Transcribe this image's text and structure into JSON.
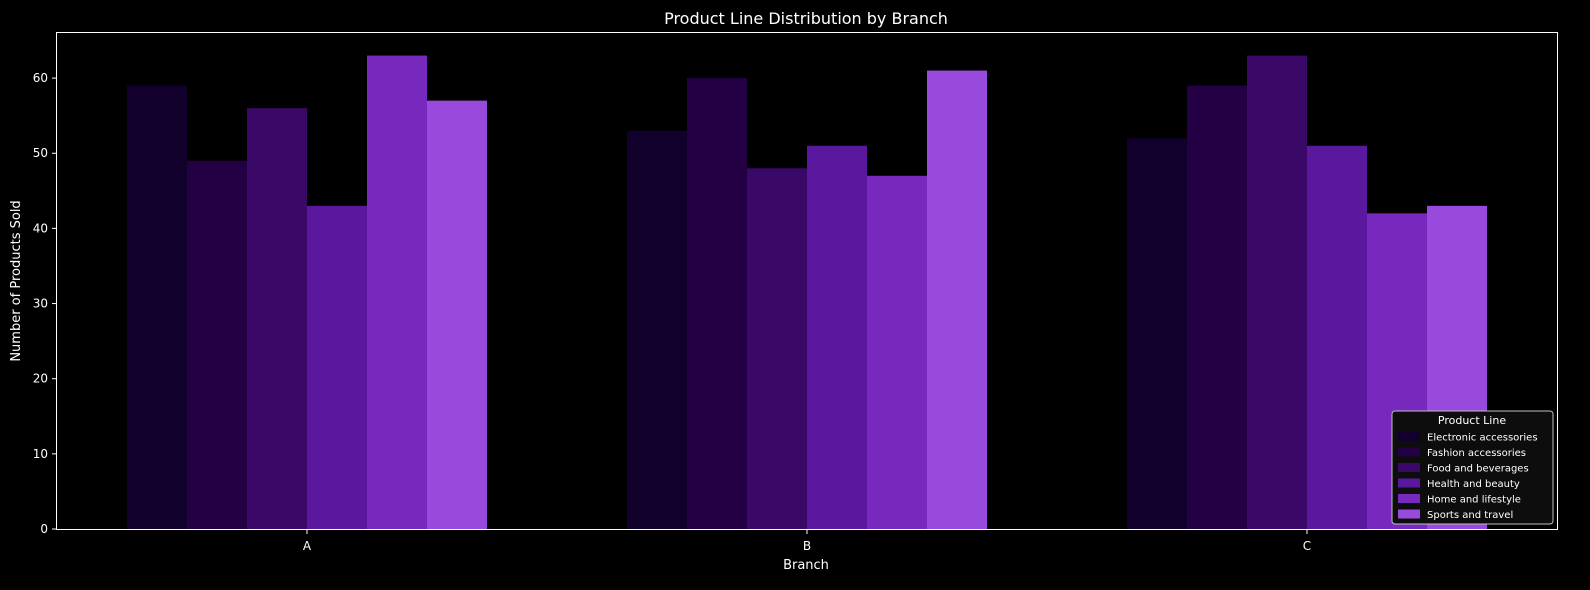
{
  "chart_data": {
    "type": "bar",
    "title": "Product Line Distribution by Branch",
    "xlabel": "Branch",
    "ylabel": "Number of Products Sold",
    "categories": [
      "A",
      "B",
      "C"
    ],
    "ylim": [
      0,
      66
    ],
    "yticks": [
      0,
      10,
      20,
      30,
      40,
      50,
      60
    ],
    "grid": false,
    "legend": {
      "title": "Product Line",
      "placement": "lower-right"
    },
    "series": [
      {
        "name": "Electronic accessories",
        "values": [
          59,
          53,
          52
        ],
        "color": "#12002c"
      },
      {
        "name": "Fashion accessories",
        "values": [
          49,
          60,
          59
        ],
        "color": "#230043"
      },
      {
        "name": "Food and beverages",
        "values": [
          56,
          48,
          63
        ],
        "color": "#3a0866"
      },
      {
        "name": "Health and beauty",
        "values": [
          43,
          51,
          51
        ],
        "color": "#59189d"
      },
      {
        "name": "Home and lifestyle",
        "values": [
          63,
          47,
          42
        ],
        "color": "#7829bd"
      },
      {
        "name": "Sports and travel",
        "values": [
          57,
          61,
          43
        ],
        "color": "#984adc"
      }
    ]
  }
}
